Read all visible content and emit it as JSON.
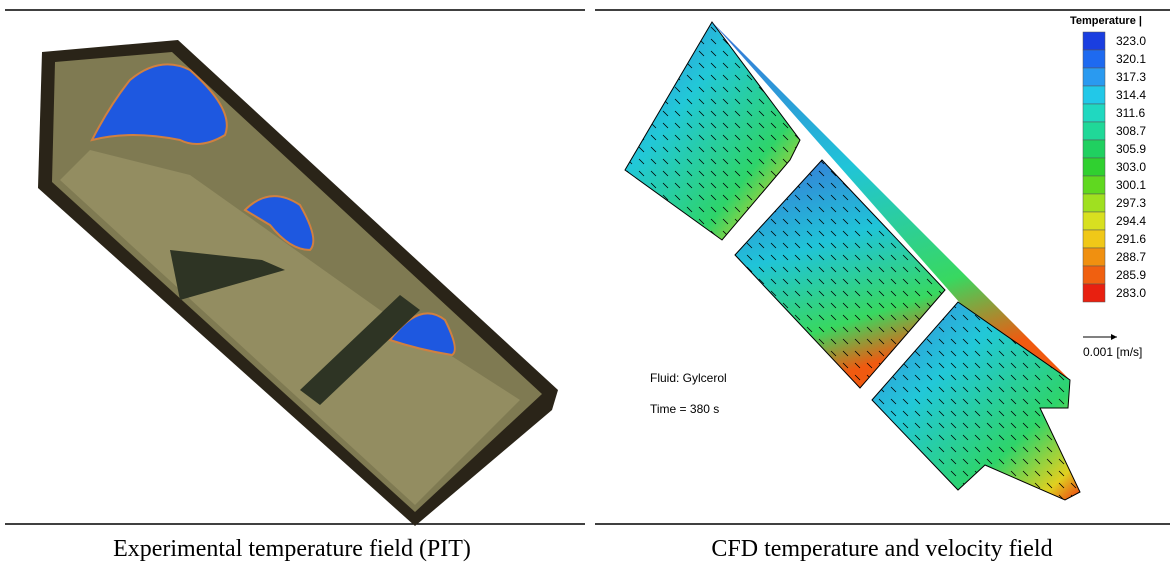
{
  "left_panel": {
    "caption": "Experimental temperature field (PIT)"
  },
  "right_panel": {
    "caption": "CFD temperature and velocity field",
    "legend": {
      "title": "Temperature |",
      "labels": [
        "323.0",
        "320.1",
        "317.3",
        "314.4",
        "311.6",
        "308.7",
        "305.9",
        "303.0",
        "300.1",
        "297.3",
        "294.4",
        "291.6",
        "288.7",
        "285.9",
        "283.0"
      ]
    },
    "vector_scale": "0.001 [m/s]",
    "fluid": "Fluid: Gylcerol",
    "time": "Time = 380 s"
  }
}
